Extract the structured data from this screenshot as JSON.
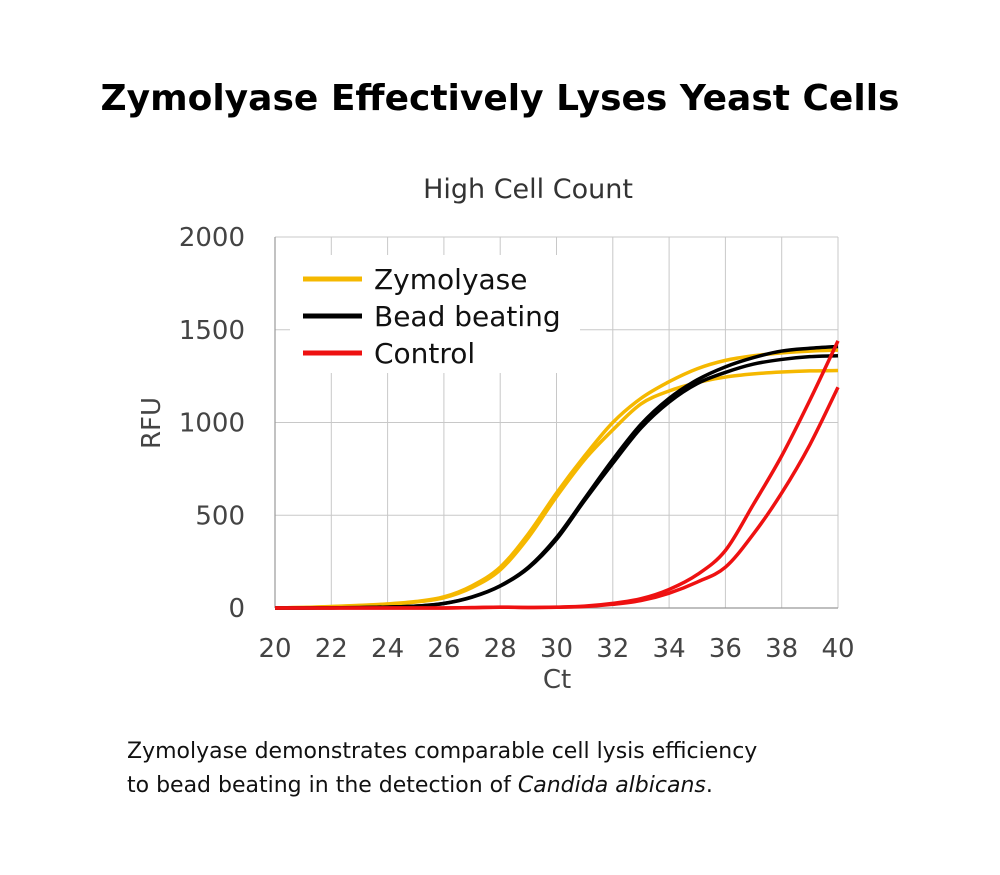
{
  "title": "Zymolyase Effectively Lyses Yeast Cells",
  "caption": {
    "line1": "Zymolyase demonstrates comparable cell lysis efficiency",
    "line2_prefix": "to bead beating in the detection of ",
    "line2_italic": "Candida albicans",
    "line2_suffix": "."
  },
  "chart_data": {
    "type": "line",
    "title": "High Cell Count",
    "xlabel": "Ct",
    "ylabel": "RFU",
    "xlim": [
      20,
      40
    ],
    "ylim": [
      0,
      2000
    ],
    "xticks": [
      "20",
      "22",
      "24",
      "26",
      "28",
      "30",
      "32",
      "34",
      "36",
      "38",
      "40"
    ],
    "yticks": [
      "0",
      "500",
      "1000",
      "1500",
      "2000"
    ],
    "grid": true,
    "legend_position": "top-left",
    "legend": [
      {
        "label": "Zymolyase",
        "color": "#F5B800"
      },
      {
        "label": "Bead beating",
        "color": "#000000"
      },
      {
        "label": "Control",
        "color": "#EE1111"
      }
    ],
    "x": [
      20,
      21,
      22,
      23,
      24,
      25,
      26,
      27,
      28,
      29,
      30,
      31,
      32,
      33,
      34,
      35,
      36,
      37,
      38,
      39,
      40
    ],
    "series": [
      {
        "name": "Zymolyase",
        "replicate": 1,
        "color": "#F5B800",
        "values": [
          0,
          3,
          8,
          14,
          22,
          35,
          60,
          120,
          220,
          400,
          620,
          820,
          1000,
          1130,
          1220,
          1290,
          1335,
          1360,
          1375,
          1385,
          1390
        ]
      },
      {
        "name": "Zymolyase",
        "replicate": 2,
        "color": "#F5B800",
        "values": [
          0,
          3,
          7,
          13,
          20,
          32,
          55,
          110,
          205,
          380,
          600,
          800,
          960,
          1100,
          1170,
          1215,
          1245,
          1262,
          1272,
          1278,
          1280
        ]
      },
      {
        "name": "Bead beating",
        "replicate": 1,
        "color": "#000000",
        "values": [
          0,
          0,
          1,
          2,
          5,
          10,
          25,
          60,
          120,
          220,
          380,
          590,
          800,
          990,
          1130,
          1230,
          1300,
          1350,
          1385,
          1400,
          1410
        ]
      },
      {
        "name": "Bead beating",
        "replicate": 2,
        "color": "#000000",
        "values": [
          0,
          0,
          1,
          2,
          5,
          10,
          24,
          58,
          118,
          215,
          370,
          580,
          780,
          970,
          1110,
          1210,
          1270,
          1315,
          1340,
          1355,
          1360
        ]
      },
      {
        "name": "Control",
        "replicate": 1,
        "color": "#EE1111",
        "values": [
          0,
          0,
          0,
          0,
          0,
          0,
          0,
          2,
          5,
          3,
          5,
          10,
          25,
          50,
          100,
          180,
          310,
          560,
          820,
          1120,
          1440
        ]
      },
      {
        "name": "Control",
        "replicate": 2,
        "color": "#EE1111",
        "values": [
          0,
          0,
          0,
          0,
          0,
          0,
          0,
          2,
          4,
          3,
          4,
          8,
          20,
          40,
          80,
          140,
          220,
          400,
          620,
          880,
          1190
        ]
      }
    ]
  }
}
